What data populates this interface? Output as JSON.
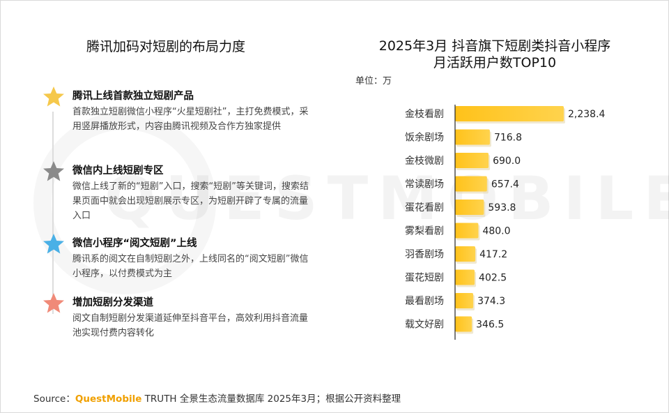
{
  "left_panel": {
    "title": "腾讯加码对短剧的布局力度",
    "items": [
      {
        "title": "腾讯上线首款独立短剧产品",
        "desc": "首款独立短剧微信小程序“火星短剧社”，主打免费模式，采用竖屏播放形式，内容由腾讯视频及合作方独家提供",
        "star_color": "#f5c84b"
      },
      {
        "title": "微信内上线短剧专区",
        "desc": "微信上线了新的“短剧”入口，搜索“短剧”等关键词，搜索结果页面中就会出现短剧展示专区，为短剧开辟了专属的流量入口",
        "star_color": "#8a8a8a"
      },
      {
        "title": "微信小程序“阅文短剧”上线",
        "desc": "腾讯系的阅文在自制短剧之外，上线同名的“阅文短剧”微信小程序，以付费模式为主",
        "star_color": "#4ab0e6"
      },
      {
        "title": "增加短剧分发渠道",
        "desc": "阅文自制短剧分发渠道延伸至抖音平台，高效利用抖音流量池实现付费内容转化",
        "star_color": "#f08a78"
      }
    ]
  },
  "chart_data": {
    "type": "bar",
    "orientation": "horizontal",
    "title_line1": "2025年3月 抖音旗下短剧类抖音小程序",
    "title_line2": "月活跃用户数TOP10",
    "unit": "单位：万",
    "categories": [
      "金枝看剧",
      "饭余剧场",
      "金枝微剧",
      "常读剧场",
      "蛋花看剧",
      "雾梨看剧",
      "羽香剧场",
      "蛋花短剧",
      "最看剧场",
      "载文好剧"
    ],
    "values": [
      2238.4,
      716.8,
      690.0,
      657.4,
      593.8,
      480.0,
      417.2,
      402.5,
      374.3,
      346.5
    ],
    "value_labels": [
      "2,238.4",
      "716.8",
      "690.0",
      "657.4",
      "593.8",
      "480.0",
      "417.2",
      "402.5",
      "374.3",
      "346.5"
    ],
    "bar_color": "#ffc21a",
    "grid": false
  },
  "watermark": "QUESTMOBILE",
  "source": {
    "prefix": "Source：",
    "brand": "QuestMobile",
    "rest": " TRUTH 全景生态流量数据库 2025年3月；根据公开资料整理"
  }
}
